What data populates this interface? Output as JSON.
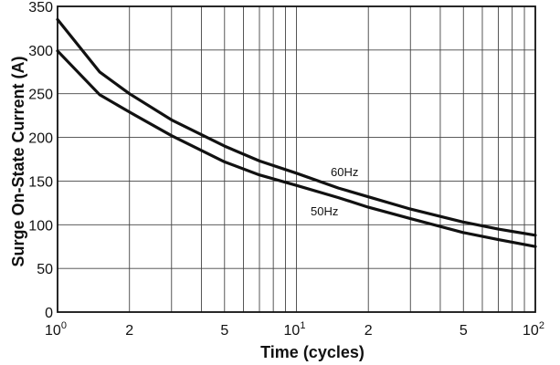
{
  "chart_data": {
    "type": "line",
    "xscale": "log",
    "xlim": [
      1,
      100
    ],
    "ylim": [
      0,
      350
    ],
    "xlabel": "Time (cycles)",
    "ylabel": "Surge On-State Current (A)",
    "grid": true,
    "x_ticks": [
      {
        "value": 1,
        "base": "10",
        "exp": "0"
      },
      {
        "value": 2,
        "base": "2",
        "exp": ""
      },
      {
        "value": 5,
        "base": "5",
        "exp": ""
      },
      {
        "value": 10,
        "base": "10",
        "exp": "1"
      },
      {
        "value": 20,
        "base": "2",
        "exp": ""
      },
      {
        "value": 50,
        "base": "5",
        "exp": ""
      },
      {
        "value": 100,
        "base": "10",
        "exp": "2"
      }
    ],
    "y_ticks": [
      "0",
      "50",
      "100",
      "150",
      "200",
      "250",
      "300",
      "350"
    ],
    "series": [
      {
        "name": "60Hz",
        "x": [
          1,
          1.5,
          2,
          3,
          5,
          7,
          10,
          15,
          20,
          30,
          50,
          70,
          100
        ],
        "y": [
          335,
          275,
          250,
          220,
          190,
          173,
          159,
          142,
          132,
          118,
          103,
          95,
          88
        ]
      },
      {
        "name": "50Hz",
        "x": [
          1,
          1.5,
          2,
          3,
          5,
          7,
          10,
          15,
          20,
          30,
          50,
          70,
          100
        ],
        "y": [
          299,
          249,
          229,
          202,
          172,
          157,
          145,
          131,
          120,
          107,
          91,
          83,
          75
        ]
      }
    ]
  }
}
